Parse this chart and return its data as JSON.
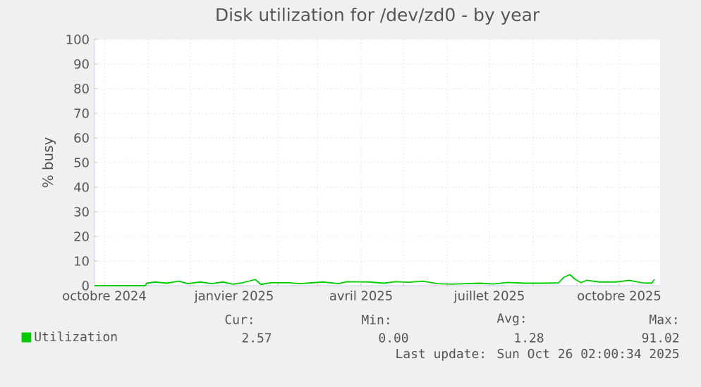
{
  "chart_data": {
    "type": "line",
    "title": "Disk utilization for /dev/zd0 - by year",
    "ylabel": "% busy",
    "xlim": [
      "2024-09-24",
      "2025-10-30"
    ],
    "xticks": [
      {
        "value": "2024-10-01",
        "label": "octobre 2024"
      },
      {
        "value": "2024-11-01",
        "label": null
      },
      {
        "value": "2024-12-01",
        "label": null
      },
      {
        "value": "2025-01-01",
        "label": "janvier 2025"
      },
      {
        "value": "2025-02-01",
        "label": null
      },
      {
        "value": "2025-03-01",
        "label": null
      },
      {
        "value": "2025-04-01",
        "label": "avril 2025"
      },
      {
        "value": "2025-05-01",
        "label": null
      },
      {
        "value": "2025-06-01",
        "label": null
      },
      {
        "value": "2025-07-01",
        "label": "juillet 2025"
      },
      {
        "value": "2025-08-01",
        "label": null
      },
      {
        "value": "2025-09-01",
        "label": null
      },
      {
        "value": "2025-10-01",
        "label": "octobre 2025"
      }
    ],
    "ylim": [
      0,
      100
    ],
    "yticks": [
      0,
      10,
      20,
      30,
      40,
      50,
      60,
      70,
      80,
      90,
      100
    ],
    "grid": true,
    "legend": "bottom left",
    "marker": "none",
    "line_style": "solid",
    "x": [
      "2024-09-24",
      "2024-10-30",
      "2024-10-31",
      "2024-11-06",
      "2024-11-14",
      "2024-11-23",
      "2024-11-29",
      "2024-12-08",
      "2024-12-16",
      "2024-12-24",
      "2024-12-31",
      "2025-01-07",
      "2025-01-16",
      "2025-01-20",
      "2025-01-27",
      "2025-02-09",
      "2025-02-17",
      "2025-03-05",
      "2025-03-16",
      "2025-03-22",
      "2025-04-07",
      "2025-04-17",
      "2025-04-25",
      "2025-05-05",
      "2025-05-15",
      "2025-05-25",
      "2025-06-04",
      "2025-06-14",
      "2025-06-24",
      "2025-07-04",
      "2025-07-14",
      "2025-07-26",
      "2025-08-08",
      "2025-08-19",
      "2025-08-23",
      "2025-08-27",
      "2025-08-31",
      "2025-09-04",
      "2025-09-08",
      "2025-09-17",
      "2025-09-29",
      "2025-10-08",
      "2025-10-17",
      "2025-10-24",
      "2025-10-26"
    ],
    "series": [
      {
        "name": "Utilization",
        "color": "#00cc00",
        "values": [
          0,
          0,
          1.0,
          1.5,
          1.0,
          1.8,
          0.8,
          1.5,
          0.8,
          1.5,
          0.6,
          1.2,
          2.5,
          0.5,
          1.2,
          1.2,
          0.8,
          1.5,
          0.8,
          1.6,
          1.5,
          1.0,
          1.6,
          1.4,
          1.8,
          0.8,
          0.6,
          0.8,
          1.0,
          0.7,
          1.3,
          1.0,
          1.0,
          1.2,
          3.5,
          4.5,
          2.5,
          1.2,
          2.2,
          1.5,
          1.5,
          2.2,
          1.2,
          1.0,
          2.6
        ]
      }
    ],
    "annotations": [
      "Cur:",
      "Min:",
      "Avg:",
      "Max:",
      "2.57",
      "0.00",
      "1.28",
      "91.02",
      "Last update: Sun Oct 26 02:00:34 2025"
    ]
  }
}
